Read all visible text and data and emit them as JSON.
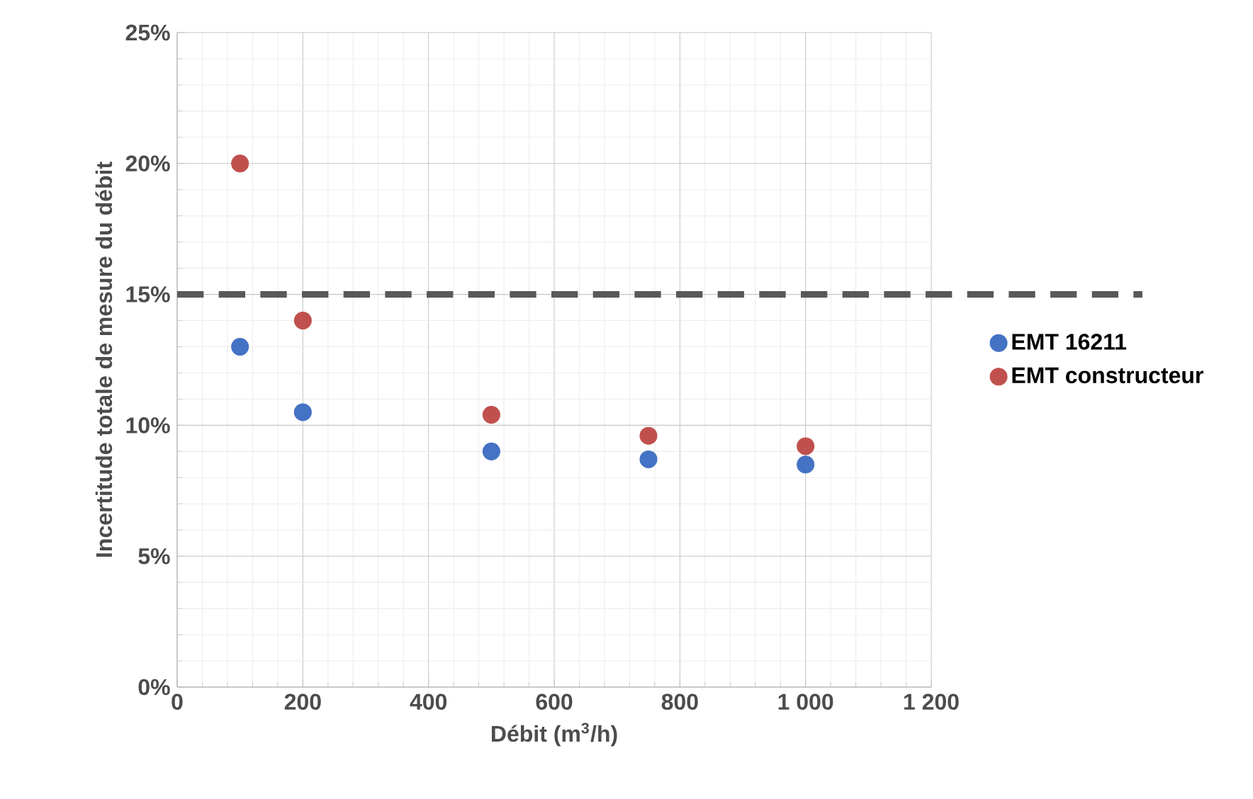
{
  "chart_data": {
    "type": "scatter",
    "xlabel": "Débit (m$^{3}$/h)",
    "ylabel": "Incertitude totale de mesure du débit",
    "xlim": [
      0,
      1200
    ],
    "xticks": [
      0,
      200,
      400,
      600,
      800,
      {
        "value": 1000,
        "label": "1 000"
      },
      {
        "value": 1200,
        "label": "1 200"
      }
    ],
    "ylim": [
      0,
      25
    ],
    "yticks": [
      {
        "value": 0,
        "label": "0%"
      },
      {
        "value": 5,
        "label": "5%"
      },
      {
        "value": 10,
        "label": "10%"
      },
      {
        "value": 15,
        "label": "15%"
      },
      {
        "value": 20,
        "label": "20%"
      },
      {
        "value": 25,
        "label": "25%"
      }
    ],
    "grid": true,
    "legend": "right",
    "ref_lines": [
      {
        "axis": "y",
        "value": 15,
        "color": "#595959",
        "line_style": "dashed"
      }
    ],
    "series": [
      {
        "name": "EMT 16211",
        "color": "#4472c4",
        "x": [
          100,
          200,
          500,
          750,
          1000
        ],
        "values": [
          13,
          10.5,
          9,
          8.7,
          8.5
        ]
      },
      {
        "name": "EMT constructeur",
        "color": "#c0504d",
        "x": [
          100,
          200,
          500,
          750,
          1000
        ],
        "values": [
          20,
          14,
          10.4,
          9.6,
          9.2
        ]
      }
    ]
  }
}
